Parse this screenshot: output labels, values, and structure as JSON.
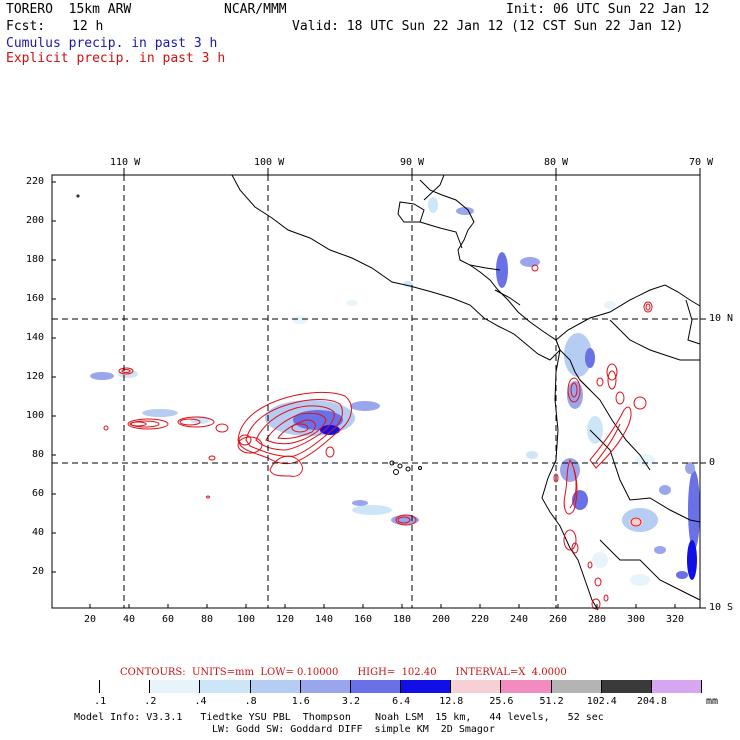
{
  "header": {
    "model": "TORERO  15km ARW",
    "org": "NCAR/MMM",
    "init": "Init: 06 UTC Sun 22 Jan 12",
    "fcst_label": "Fcst:",
    "fcst_value": "12 h",
    "valid": "Valid: 18 UTC Sun 22 Jan 12 (12 CST Sun 22 Jan 12)",
    "legend_cumulus": "Cumulus precip. in past 3 h",
    "legend_explicit": "Explicit precip. in past 3 h",
    "colors": {
      "cumulus": "#1a1aa8",
      "explicit": "#d01010"
    }
  },
  "axes": {
    "top_lon_labels": [
      "110 W",
      "100 W",
      "90 W",
      "80 W",
      "70 W"
    ],
    "right_lat_labels": [
      "10 N",
      "0",
      "10 S"
    ],
    "left_y_labels": [
      "220",
      "200",
      "180",
      "160",
      "140",
      "120",
      "100",
      "80",
      "60",
      "40",
      "20"
    ],
    "bottom_x_labels": [
      "20",
      "40",
      "60",
      "80",
      "100",
      "120",
      "140",
      "160",
      "180",
      "200",
      "220",
      "240",
      "260",
      "280",
      "300",
      "320"
    ]
  },
  "colorbar": {
    "contours_text": "CONTOURS:  UNITS=mm  LOW= 0.10000      HIGH=  102.40      INTERVAL=X  4.0000",
    "labels": [
      ".1",
      ".2",
      ".4",
      ".8",
      "1.6",
      "3.2",
      "6.4",
      "12.8",
      "25.6",
      "51.2",
      "102.4",
      "204.8"
    ],
    "unit": "mm",
    "colors": [
      "#ffffff",
      "#ffffff",
      "#e8f4fb",
      "#cde6f7",
      "#b5cdf2",
      "#9aa6ec",
      "#6a70e6",
      "#1010e6",
      "#f7d0d6",
      "#f28cc0",
      "#b4b4b4",
      "#3a3a3a",
      "#d7a6f0"
    ]
  },
  "footer": {
    "line1": "Model Info: V3.3.1   Tiedtke YSU PBL  Thompson    Noah LSM  15 km,   44 levels,   52 sec",
    "line2": "LW: Godd SW: Goddard DIFF  simple KM  2D Smagor"
  }
}
